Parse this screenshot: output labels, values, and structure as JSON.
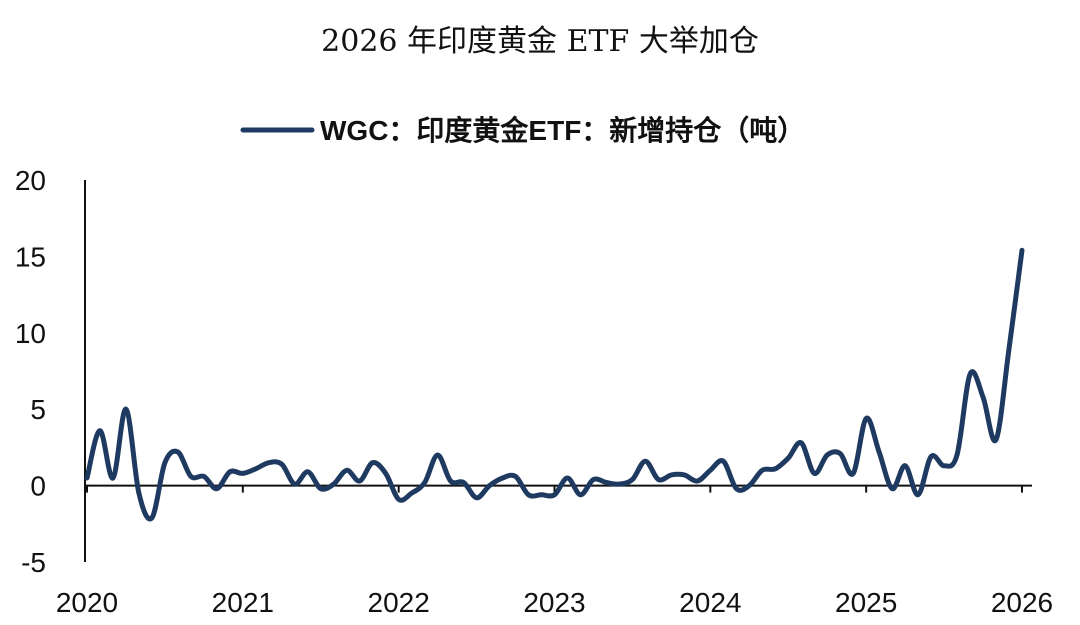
{
  "chart_data": {
    "type": "line",
    "title": "2026 年印度黄金 ETF 大举加仓",
    "xlabel": "",
    "ylabel": "",
    "series": [
      {
        "name": "WGC：印度黄金ETF：新增持仓（吨）",
        "color": "#1f3a60",
        "x": [
          2020.0,
          2020.083,
          2020.167,
          2020.25,
          2020.333,
          2020.417,
          2020.5,
          2020.583,
          2020.667,
          2020.75,
          2020.833,
          2020.917,
          2021.0,
          2021.083,
          2021.167,
          2021.25,
          2021.333,
          2021.417,
          2021.5,
          2021.583,
          2021.667,
          2021.75,
          2021.833,
          2021.917,
          2022.0,
          2022.083,
          2022.167,
          2022.25,
          2022.333,
          2022.417,
          2022.5,
          2022.583,
          2022.667,
          2022.75,
          2022.833,
          2022.917,
          2023.0,
          2023.083,
          2023.167,
          2023.25,
          2023.333,
          2023.417,
          2023.5,
          2023.583,
          2023.667,
          2023.75,
          2023.833,
          2023.917,
          2024.0,
          2024.083,
          2024.167,
          2024.25,
          2024.333,
          2024.417,
          2024.5,
          2024.583,
          2024.667,
          2024.75,
          2024.833,
          2024.917,
          2025.0,
          2025.083,
          2025.167,
          2025.25,
          2025.333,
          2025.417,
          2025.5,
          2025.583,
          2025.667,
          2025.75,
          2025.833,
          2025.917,
          2026.0
        ],
        "y": [
          0.5,
          3.6,
          0.5,
          5.0,
          -0.5,
          -2.1,
          1.5,
          2.2,
          0.6,
          0.6,
          -0.2,
          0.9,
          0.8,
          1.1,
          1.5,
          1.4,
          0.1,
          0.9,
          -0.2,
          0.1,
          1.0,
          0.3,
          1.5,
          0.8,
          -0.9,
          -0.5,
          0.2,
          2.0,
          0.3,
          0.2,
          -0.8,
          0.0,
          0.5,
          0.6,
          -0.6,
          -0.6,
          -0.6,
          0.5,
          -0.6,
          0.4,
          0.2,
          0.1,
          0.4,
          1.6,
          0.4,
          0.7,
          0.7,
          0.3,
          1.0,
          1.6,
          -0.2,
          0.0,
          1.0,
          1.1,
          1.8,
          2.8,
          0.8,
          2.0,
          2.1,
          0.8,
          4.4,
          2.2,
          -0.2,
          1.3,
          -0.6,
          1.9,
          1.3,
          2.0,
          7.3,
          5.8,
          3.0,
          9.0,
          15.4
        ]
      }
    ],
    "ylim": [
      -5,
      20
    ],
    "xlim": [
      2020,
      2026
    ],
    "y_ticks": [
      "20",
      "15",
      "10",
      "5",
      "0",
      "-5"
    ],
    "x_ticks": [
      "2020",
      "2021",
      "2022",
      "2023",
      "2024",
      "2025",
      "2026"
    ],
    "grid": false,
    "legend_position": "top-center"
  }
}
